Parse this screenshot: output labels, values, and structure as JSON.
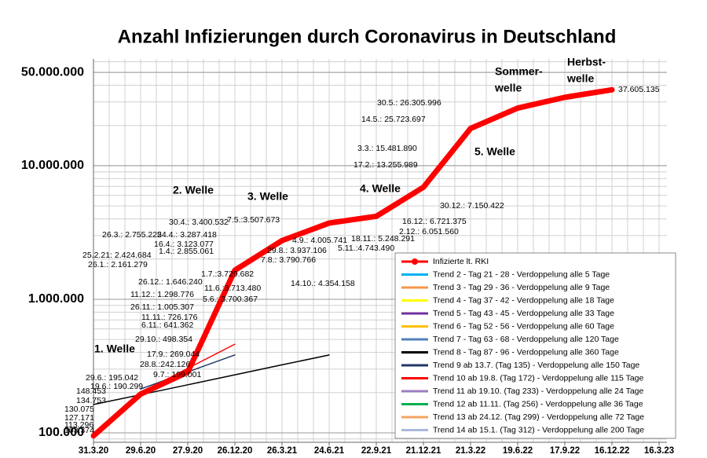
{
  "chart_data": {
    "type": "line",
    "title": "Anzahl Infizierungen durch Coronavirus in Deutschland",
    "categories": [
      "31.3.20",
      "29.6.20",
      "27.9.20",
      "26.12.20",
      "26.3.21",
      "24.6.21",
      "22.9.21",
      "21.12.21",
      "21.3.22",
      "19.6.22",
      "17.9.22",
      "16.12.22",
      "16.3.23"
    ],
    "log_scale": true,
    "grid": true,
    "ylim": [
      85000,
      63000000
    ],
    "yticks": [
      {
        "value": 100000,
        "label": "100.000"
      },
      {
        "value": 1000000,
        "label": "1.000.000"
      },
      {
        "value": 10000000,
        "label": "10.000.000"
      },
      {
        "value": 50000000,
        "label": "50.000.000"
      }
    ],
    "series": [
      {
        "name": "Infizierte lt. RKI",
        "color": "#ff0000",
        "values": [
          95000,
          195000,
          285000,
          1650000,
          2750000,
          3720000,
          4180000,
          6900000,
          19000000,
          27000000,
          32500000,
          37000000,
          null
        ]
      },
      {
        "name": "Trend 2 - Tag 21 - 28 - Verdoppelung alle 5 Tage",
        "color": "#00b0f0"
      },
      {
        "name": "Trend 3 - Tag 29 - 36 - Verdoppelung alle 9 Tage",
        "color": "#f79646"
      },
      {
        "name": "Trend 4 - Tag 37 - 42 - Verdoppelung alle 18 Tage",
        "color": "#ffff00"
      },
      {
        "name": "Trend 5 - Tag 43 - 45 - Verdoppelung alle 33 Tage",
        "color": "#7030a0"
      },
      {
        "name": "Trend 6 - Tag 52 - 56 - Verdoppelung alle 60 Tage",
        "color": "#ffc000"
      },
      {
        "name": "Trend 7 - Tag 63 - 68 - Verdoppelung alle 120 Tage",
        "color": "#4f81bd"
      },
      {
        "name": "Trend 8 - Tag 87 - 96 - Verdoppelung alle 360 Tage",
        "color": "#000000",
        "values": [
          163000,
          193000,
          229000,
          272000,
          323000,
          383000,
          null,
          null,
          null,
          null,
          null,
          null,
          null
        ]
      },
      {
        "name": "Trend 9 ab 13.7. (Tag 135) - Verdoppelung alle 150 Tage",
        "color": "#1f3864",
        "values": [
          null,
          213000,
          286000,
          383000,
          null,
          null,
          null,
          null,
          null,
          null,
          null,
          null,
          null
        ]
      },
      {
        "name": "Trend 10 ab 19.8. (Tag 172) - Verdoppelung alle 115 Tage",
        "color": "#ff0000",
        "values": [
          null,
          200000,
          304000,
          461000,
          null,
          null,
          null,
          null,
          null,
          null,
          null,
          null,
          null
        ]
      },
      {
        "name": "Trend 11 ab 19.10. (Tag 233) - Verdoppelung alle 24 Tage",
        "color": "#9e7cc1"
      },
      {
        "name": "Trend 12 ab 11.11. (Tag 256) - Verdoppelung alle 36 Tage",
        "color": "#00b050"
      },
      {
        "name": "Trend 13 ab 24.12. (Tag 299) - Verdoppelung alle 72 Tage",
        "color": "#f4a460"
      },
      {
        "name": "Trend 14 ab 15.1. (Tag 312) - Verdoppelung alle 200 Tage",
        "color": "#a9b8dd"
      }
    ],
    "end_label": "37.605.135",
    "annotations": [
      "30.5.: 26.305.996",
      "14.5.: 25.723.697",
      "3.3.: 15.481.890",
      "17.2.: 13.255.989",
      "30.12.: 7.150.422",
      "16.12.: 6.721.375",
      "2.12.: 6.051.560",
      "18.11.: 5.248.291",
      "5.11.:4.743.490",
      "4.9.: 4.005.741",
      "29.8.: 3.937.106",
      "7.8.: 3.790.766",
      "14.10.: 4.354.158",
      "7.5.:3.507.673",
      "30.4.: 3.400.532",
      "24.4.: 3.287.418",
      "26.3.: 2.755.225",
      "16.4.: 3.123.077",
      "1.4.: 2.855.061",
      "25.2.21: 2.424.684",
      "26.1.: 2.161.279",
      "1.7.:3.729.682",
      "26.12.: 1.646.240",
      "11.6.:3.713.480",
      "11.12.: 1.298.776",
      "5.6.: 3.700.367",
      "26.11.: 1.005.307",
      "11.11.: 726.176",
      "6.11.: 641.362",
      "29.10.: 498.354",
      "17.9.: 269.044",
      "28.8.:242.126",
      "9.7.: 199.001",
      "29.6.: 195.042",
      "19.6.: 190.299",
      "148.453",
      "134.753",
      "130.075",
      "127.171",
      "113.296",
      "103.374"
    ],
    "wave_labels": [
      "1. Welle",
      "2. Welle",
      "3. Welle",
      "4. Welle",
      "5. Welle",
      "Sommer-",
      "welle",
      "Herbst-",
      "welle"
    ]
  }
}
